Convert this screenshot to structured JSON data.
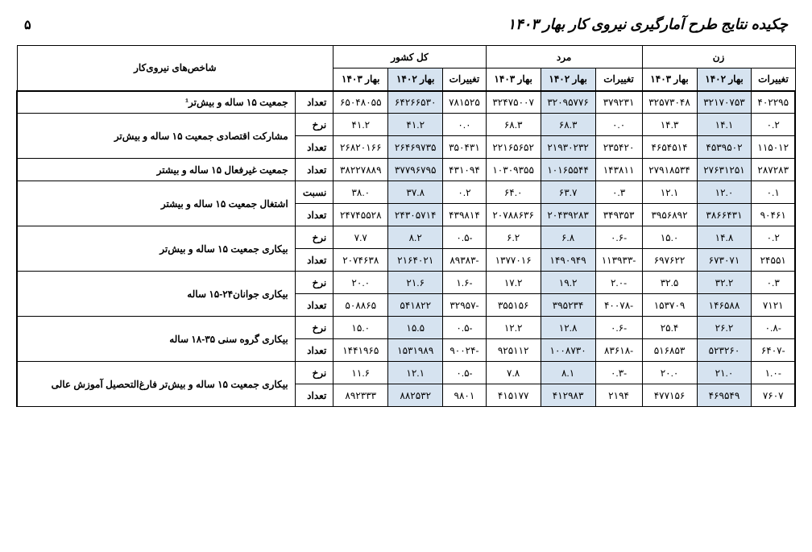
{
  "header": {
    "title": "چکیده نتایج طرح آمارگیری نیروی کار بهار ۱۴۰۳",
    "page_number": "۵"
  },
  "table": {
    "group_headers": {
      "women": "زن",
      "men": "مرد",
      "total": "کل کشور",
      "indicators": "شاخص‌های نیروی‌کار"
    },
    "sub_headers": {
      "changes": "تغییرات",
      "spring1402": "بهار ۱۴۰۲",
      "spring1403": "بهار ۱۴۰۳"
    },
    "type_labels": {
      "count": "تعداد",
      "rate": "نرخ",
      "ratio": "نسبت"
    },
    "indicators": [
      "جمعیت ۱۵ ساله و بیش‌تر¹",
      "مشارکت اقتصادی جمعیت ۱۵ ساله و بیش‌تر",
      "جمعیت غیرفعال ۱۵ ساله و بیشتر",
      "اشتغال جمعیت ۱۵ ساله و بیشتر",
      "بیکاری جمعیت ۱۵ ساله و بیش‌تر",
      "بیکاری جوانان۲۴-۱۵ ساله",
      "بیکاری گروه سنی ۳۵-۱۸ ساله",
      "بیکاری جمعیت ۱۵ ساله و بیش‌تر فارغ‌التحصیل آموزش عالی"
    ],
    "rows": [
      {
        "women": [
          "۴۰۲۲۹۵",
          "۳۲۱۷۰۷۵۳",
          "۳۲۵۷۳۰۴۸"
        ],
        "men": [
          "۳۷۹۲۳۱",
          "۳۲۰۹۵۷۷۶",
          "۳۲۴۷۵۰۰۷"
        ],
        "total": [
          "۷۸۱۵۲۵",
          "۶۴۲۶۶۵۳۰",
          "۶۵۰۴۸۰۵۵"
        ],
        "type": "count"
      },
      {
        "women": [
          "۰.۲",
          "۱۴.۱",
          "۱۴.۳"
        ],
        "men": [
          "۰.۰",
          "۶۸.۳",
          "۶۸.۳"
        ],
        "total": [
          "۰.۰",
          "۴۱.۲",
          "۴۱.۲"
        ],
        "type": "rate"
      },
      {
        "women": [
          "۱۱۵۰۱۲",
          "۴۵۳۹۵۰۲",
          "۴۶۵۴۵۱۴"
        ],
        "men": [
          "۲۳۵۴۲۰",
          "۲۱۹۳۰۲۳۲",
          "۲۲۱۶۵۶۵۲"
        ],
        "total": [
          "۳۵۰۴۳۱",
          "۲۶۴۶۹۷۳۵",
          "۲۶۸۲۰۱۶۶"
        ],
        "type": "count"
      },
      {
        "women": [
          "۲۸۷۲۸۳",
          "۲۷۶۳۱۲۵۱",
          "۲۷۹۱۸۵۳۴"
        ],
        "men": [
          "۱۴۳۸۱۱",
          "۱۰۱۶۵۵۴۴",
          "۱۰۳۰۹۳۵۵"
        ],
        "total": [
          "۴۳۱۰۹۴",
          "۳۷۷۹۶۷۹۵",
          "۳۸۲۲۷۸۸۹"
        ],
        "type": "count"
      },
      {
        "women": [
          "۰.۱",
          "۱۲.۰",
          "۱۲.۱"
        ],
        "men": [
          "۰.۳",
          "۶۳.۷",
          "۶۴.۰"
        ],
        "total": [
          "۰.۲",
          "۳۷.۸",
          "۳۸.۰"
        ],
        "type": "ratio"
      },
      {
        "women": [
          "۹۰۴۶۱",
          "۳۸۶۶۴۳۱",
          "۳۹۵۶۸۹۲"
        ],
        "men": [
          "۳۴۹۳۵۳",
          "۲۰۴۳۹۲۸۳",
          "۲۰۷۸۸۶۳۶"
        ],
        "total": [
          "۴۳۹۸۱۴",
          "۲۴۳۰۵۷۱۴",
          "۲۴۷۴۵۵۲۸"
        ],
        "type": "count"
      },
      {
        "women": [
          "۰.۲",
          "۱۴.۸",
          "۱۵.۰"
        ],
        "men": [
          "-۰.۶",
          "۶.۸",
          "۶.۲"
        ],
        "total": [
          "-۰.۵",
          "۸.۲",
          "۷.۷"
        ],
        "type": "rate"
      },
      {
        "women": [
          "۲۴۵۵۱",
          "۶۷۳۰۷۱",
          "۶۹۷۶۲۲"
        ],
        "men": [
          "-۱۱۳۹۳۳",
          "۱۴۹۰۹۴۹",
          "۱۳۷۷۰۱۶"
        ],
        "total": [
          "-۸۹۳۸۳",
          "۲۱۶۴۰۲۱",
          "۲۰۷۴۶۳۸"
        ],
        "type": "count"
      },
      {
        "women": [
          "۰.۳",
          "۳۲.۲",
          "۳۲.۵"
        ],
        "men": [
          "-۲.۰",
          "۱۹.۲",
          "۱۷.۲"
        ],
        "total": [
          "-۱.۶",
          "۲۱.۶",
          "۲۰.۰"
        ],
        "type": "rate"
      },
      {
        "women": [
          "۷۱۲۱",
          "۱۴۶۵۸۸",
          "۱۵۳۷۰۹"
        ],
        "men": [
          "-۴۰۰۷۸",
          "۳۹۵۲۳۴",
          "۳۵۵۱۵۶"
        ],
        "total": [
          "-۳۲۹۵۷",
          "۵۴۱۸۲۲",
          "۵۰۸۸۶۵"
        ],
        "type": "count"
      },
      {
        "women": [
          "-۰.۸",
          "۲۶.۲",
          "۲۵.۴"
        ],
        "men": [
          "-۰.۶",
          "۱۲.۸",
          "۱۲.۲"
        ],
        "total": [
          "-۰.۵",
          "۱۵.۵",
          "۱۵.۰"
        ],
        "type": "rate"
      },
      {
        "women": [
          "-۶۴۰۷",
          "۵۲۳۲۶۰",
          "۵۱۶۸۵۳"
        ],
        "men": [
          "-۸۳۶۱۸",
          "۱۰۰۸۷۳۰",
          "۹۲۵۱۱۲"
        ],
        "total": [
          "-۹۰۰۲۴",
          "۱۵۳۱۹۸۹",
          "۱۴۴۱۹۶۵"
        ],
        "type": "count"
      },
      {
        "women": [
          "-۱.۰",
          "۲۱.۰",
          "۲۰.۰"
        ],
        "men": [
          "-۰.۳",
          "۸.۱",
          "۷.۸"
        ],
        "total": [
          "-۰.۵",
          "۱۲.۱",
          "۱۱.۶"
        ],
        "type": "rate"
      },
      {
        "women": [
          "۷۶۰۷",
          "۴۶۹۵۴۹",
          "۴۷۷۱۵۶"
        ],
        "men": [
          "۲۱۹۴",
          "۴۱۲۹۸۳",
          "۴۱۵۱۷۷"
        ],
        "total": [
          "۹۸۰۱",
          "۸۸۲۵۳۲",
          "۸۹۲۳۳۳"
        ],
        "type": "count"
      }
    ],
    "indicator_spans": [
      1,
      2,
      1,
      2,
      2,
      2,
      2,
      2
    ]
  }
}
